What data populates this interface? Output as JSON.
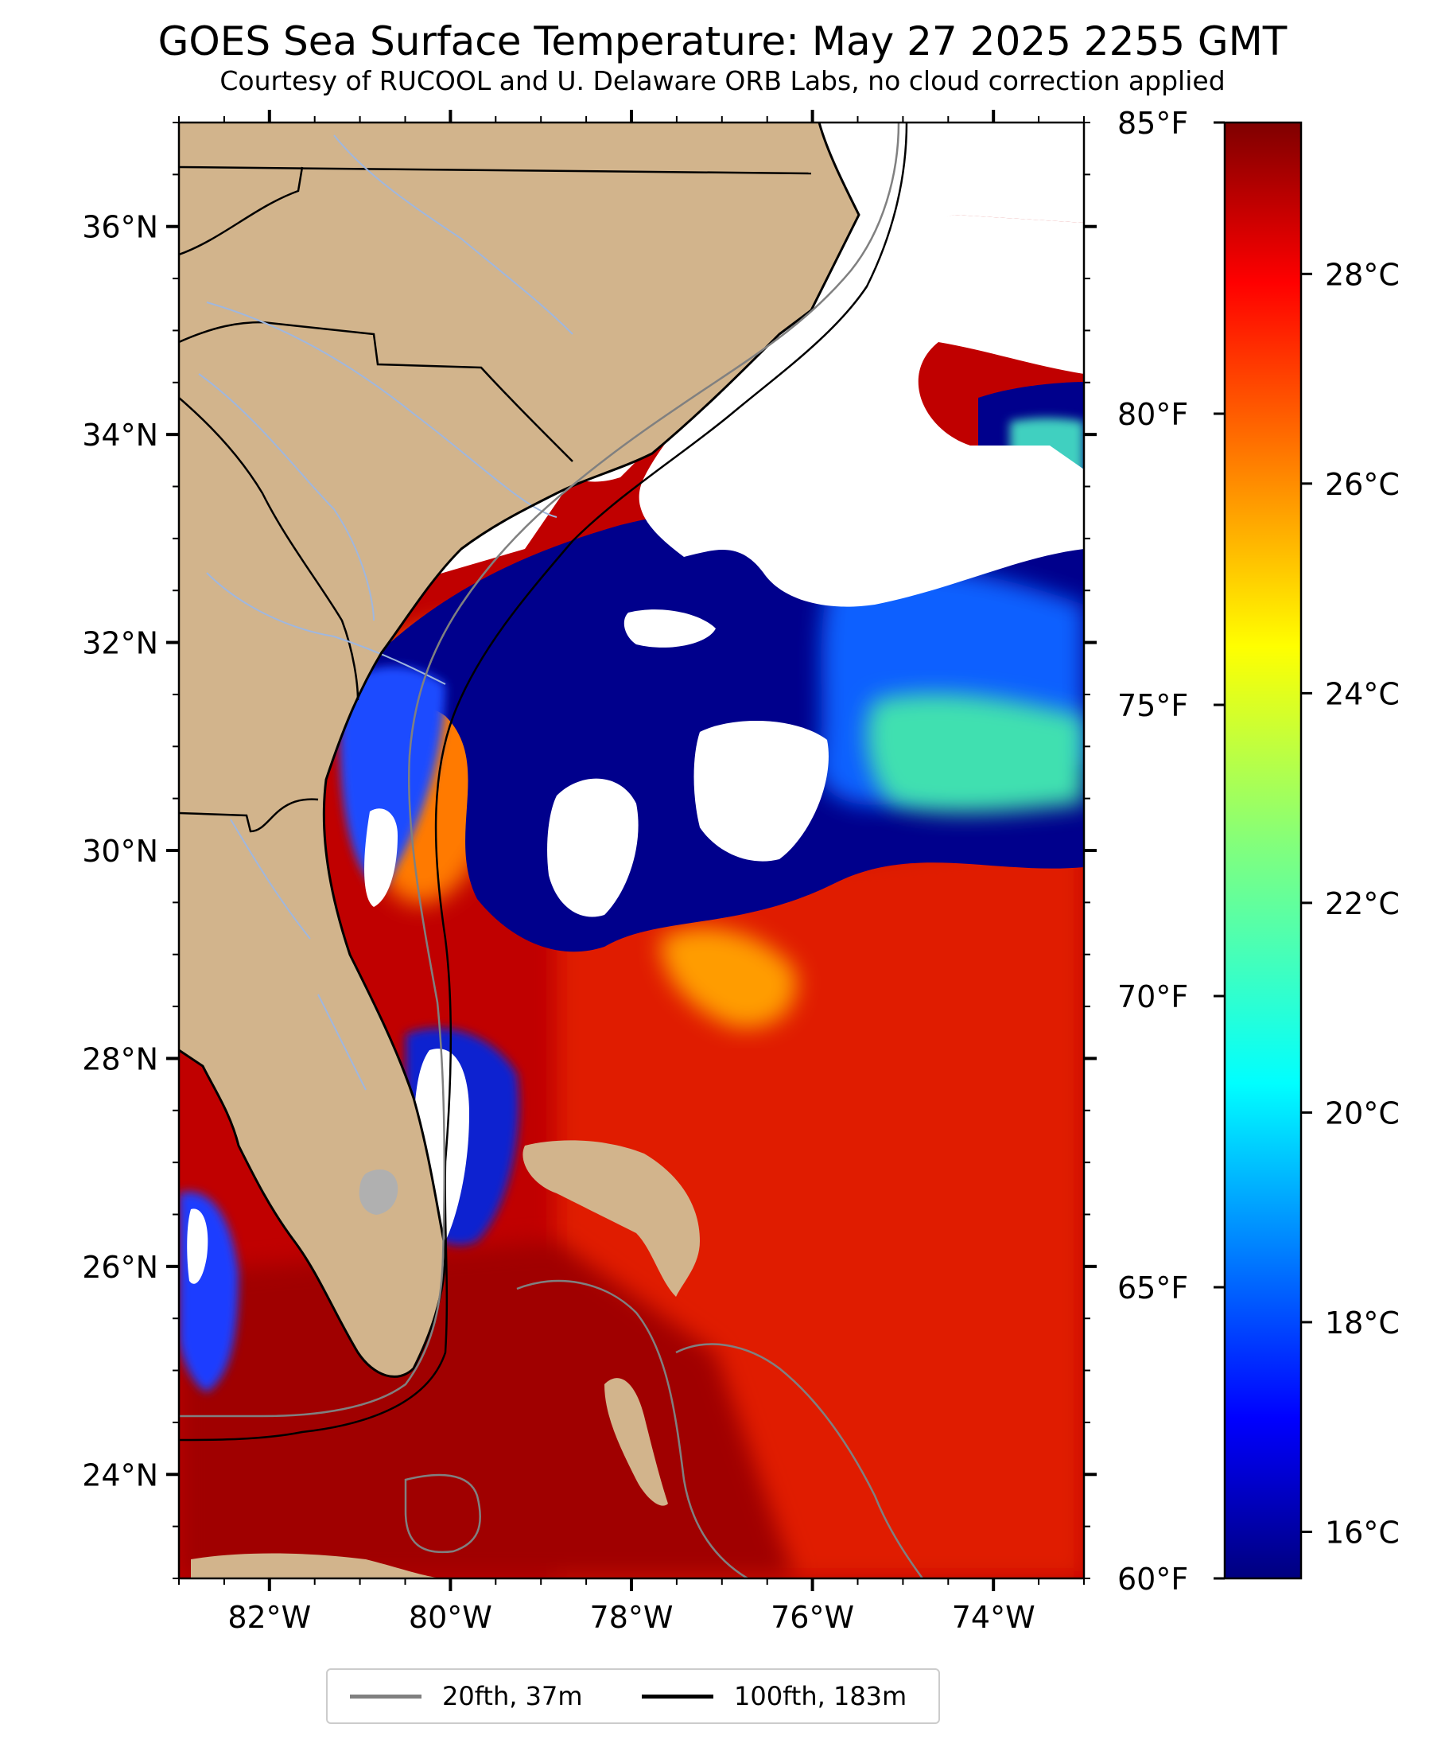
{
  "title": "GOES Sea Surface Temperature: May 27 2025 2255 GMT",
  "subtitle": "Courtesy of RUCOOL and U. Delaware ORB Labs, no cloud correction applied",
  "map": {
    "lon_range": [
      -83,
      -73
    ],
    "lat_range": [
      23,
      37
    ],
    "lat_ticks": [
      "36°N",
      "34°N",
      "32°N",
      "30°N",
      "28°N",
      "26°N",
      "24°N"
    ],
    "lat_tick_values": [
      36,
      34,
      32,
      30,
      28,
      26,
      24
    ],
    "lon_ticks": [
      "82°W",
      "80°W",
      "78°W",
      "76°W",
      "74°W"
    ],
    "lon_tick_values": [
      -82,
      -80,
      -78,
      -76,
      -74
    ],
    "colors": {
      "land": "#d2b48c",
      "ocean_warm": "#b40000",
      "no_data": "#ffffff",
      "cool_water": "#00008c",
      "state_border": "#000000",
      "rivers": "#9fb7df"
    }
  },
  "colorbar": {
    "colormap": "jet",
    "celsius_labels": [
      "28°C",
      "26°C",
      "24°C",
      "22°C",
      "20°C",
      "18°C",
      "16°C"
    ],
    "celsius_values": [
      28,
      26,
      24,
      22,
      20,
      18,
      16
    ],
    "fahrenheit_labels": [
      "85°F",
      "80°F",
      "75°F",
      "70°F",
      "65°F",
      "60°F"
    ],
    "fahrenheit_values": [
      85,
      80,
      75,
      70,
      65,
      60
    ],
    "range_f": [
      60,
      85
    ]
  },
  "legend": {
    "items": [
      {
        "label": "20fth, 37m",
        "color": "#808080"
      },
      {
        "label": "100fth, 183m",
        "color": "#000000"
      }
    ]
  }
}
